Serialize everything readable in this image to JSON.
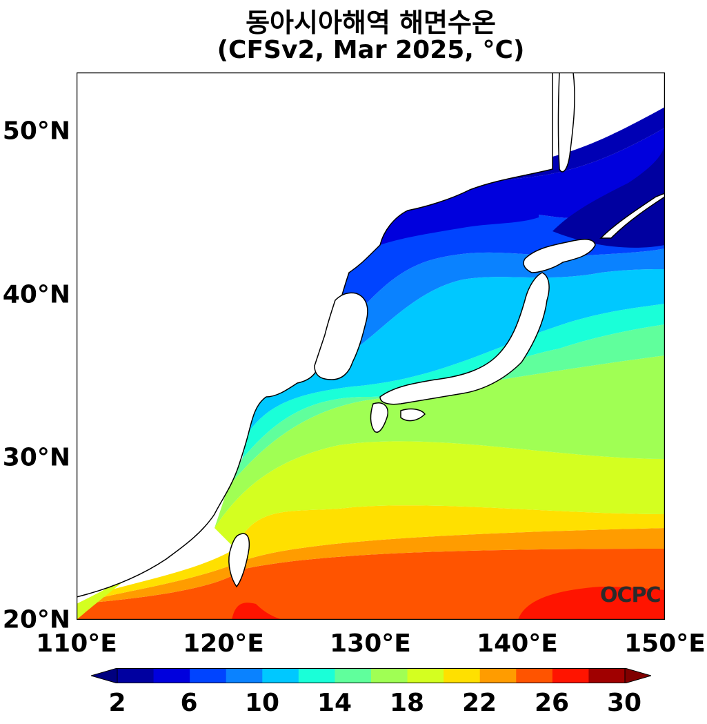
{
  "title": {
    "line1": "동아시아해역 해면수온",
    "line2": "(CFSv2, Mar 2025, °C)"
  },
  "map": {
    "lat_labels": [
      "50°N",
      "40°N",
      "30°N",
      "20°N"
    ],
    "lon_labels": [
      "110°E",
      "120°E",
      "130°E",
      "140°E",
      "150°E"
    ],
    "extent": {
      "lon": [
        110,
        150
      ],
      "lat": [
        20,
        53.5
      ]
    },
    "logo": "OCPC"
  },
  "colorbar": {
    "labels": [
      "2",
      "6",
      "10",
      "14",
      "18",
      "22",
      "26",
      "30"
    ],
    "bounds": [
      2,
      30
    ],
    "step": 2,
    "colors": [
      "#0000a0",
      "#0000dd",
      "#0044ff",
      "#0a82ff",
      "#00c8ff",
      "#1affd8",
      "#60ff9c",
      "#a0ff54",
      "#d4ff20",
      "#ffe000",
      "#ff9c00",
      "#ff5400",
      "#ff1400",
      "#a00000"
    ],
    "under_color": "#000080",
    "over_color": "#800000"
  }
}
